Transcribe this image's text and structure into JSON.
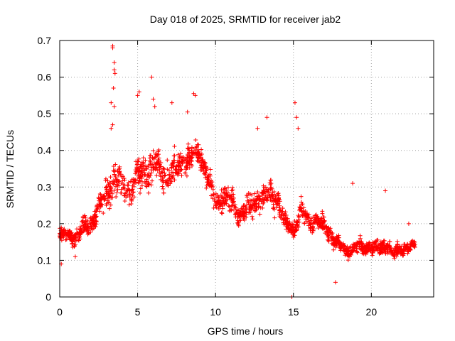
{
  "chart_data": {
    "type": "scatter",
    "title": "Day 018 of 2025, SRMTID for receiver jab2",
    "xlabel": "GPS time / hours",
    "ylabel": "SRMTID / TECUs",
    "xlim": [
      0,
      24
    ],
    "ylim": [
      0,
      0.7
    ],
    "x_ticks": [
      0,
      5,
      10,
      15,
      20
    ],
    "x_tick_labels": [
      "0",
      "5",
      "10",
      "15",
      "20"
    ],
    "y_ticks": [
      0,
      0.1,
      0.2,
      0.3,
      0.4,
      0.5,
      0.6,
      0.7
    ],
    "y_tick_labels": [
      "0",
      "0.1",
      "0.2",
      "0.3",
      "0.4",
      "0.5",
      "0.6",
      "0.7"
    ],
    "grid": true,
    "marker": "+",
    "color": "#ff0000",
    "series": [
      {
        "name": "SRMTID",
        "trend": [
          [
            0.0,
            0.17,
            0.04
          ],
          [
            0.5,
            0.17,
            0.04
          ],
          [
            1.0,
            0.16,
            0.04
          ],
          [
            1.5,
            0.19,
            0.05
          ],
          [
            2.0,
            0.2,
            0.05
          ],
          [
            2.5,
            0.24,
            0.07
          ],
          [
            3.0,
            0.28,
            0.09
          ],
          [
            3.5,
            0.32,
            0.1
          ],
          [
            4.0,
            0.3,
            0.08
          ],
          [
            4.5,
            0.29,
            0.08
          ],
          [
            5.0,
            0.33,
            0.09
          ],
          [
            5.5,
            0.34,
            0.1
          ],
          [
            6.0,
            0.36,
            0.1
          ],
          [
            6.5,
            0.34,
            0.09
          ],
          [
            7.0,
            0.33,
            0.08
          ],
          [
            7.5,
            0.35,
            0.08
          ],
          [
            8.0,
            0.37,
            0.07
          ],
          [
            8.5,
            0.38,
            0.07
          ],
          [
            9.0,
            0.39,
            0.06
          ],
          [
            9.5,
            0.33,
            0.07
          ],
          [
            10.0,
            0.25,
            0.07
          ],
          [
            10.5,
            0.28,
            0.07
          ],
          [
            11.0,
            0.26,
            0.07
          ],
          [
            11.5,
            0.22,
            0.06
          ],
          [
            12.0,
            0.24,
            0.07
          ],
          [
            12.5,
            0.25,
            0.07
          ],
          [
            13.0,
            0.27,
            0.07
          ],
          [
            13.5,
            0.28,
            0.07
          ],
          [
            14.0,
            0.26,
            0.07
          ],
          [
            14.5,
            0.2,
            0.05
          ],
          [
            15.0,
            0.18,
            0.05
          ],
          [
            15.5,
            0.24,
            0.06
          ],
          [
            16.0,
            0.2,
            0.05
          ],
          [
            16.5,
            0.21,
            0.05
          ],
          [
            17.0,
            0.19,
            0.05
          ],
          [
            17.5,
            0.16,
            0.04
          ],
          [
            18.0,
            0.14,
            0.04
          ],
          [
            18.5,
            0.12,
            0.035
          ],
          [
            19.0,
            0.14,
            0.04
          ],
          [
            19.5,
            0.13,
            0.04
          ],
          [
            20.0,
            0.14,
            0.04
          ],
          [
            20.5,
            0.13,
            0.04
          ],
          [
            21.0,
            0.14,
            0.04
          ],
          [
            21.5,
            0.12,
            0.04
          ],
          [
            22.0,
            0.13,
            0.04
          ],
          [
            22.5,
            0.14,
            0.03
          ],
          [
            22.8,
            0.14,
            0.03
          ]
        ],
        "outliers": [
          [
            3.4,
            0.685
          ],
          [
            3.4,
            0.68
          ],
          [
            3.5,
            0.64
          ],
          [
            3.5,
            0.62
          ],
          [
            3.55,
            0.61
          ],
          [
            3.45,
            0.57
          ],
          [
            3.3,
            0.53
          ],
          [
            3.5,
            0.52
          ],
          [
            3.4,
            0.47
          ],
          [
            3.3,
            0.46
          ],
          [
            5.9,
            0.6
          ],
          [
            5.1,
            0.56
          ],
          [
            5.0,
            0.55
          ],
          [
            6.0,
            0.54
          ],
          [
            6.1,
            0.52
          ],
          [
            7.2,
            0.53
          ],
          [
            8.2,
            0.505
          ],
          [
            8.6,
            0.555
          ],
          [
            8.7,
            0.55
          ],
          [
            13.3,
            0.49
          ],
          [
            12.7,
            0.46
          ],
          [
            15.1,
            0.53
          ],
          [
            15.2,
            0.49
          ],
          [
            15.3,
            0.46
          ],
          [
            18.8,
            0.31
          ],
          [
            20.9,
            0.29
          ],
          [
            22.4,
            0.2
          ],
          [
            17.7,
            0.04
          ],
          [
            14.9,
            0.0
          ],
          [
            0.1,
            0.09
          ],
          [
            1.0,
            0.11
          ]
        ]
      }
    ]
  }
}
